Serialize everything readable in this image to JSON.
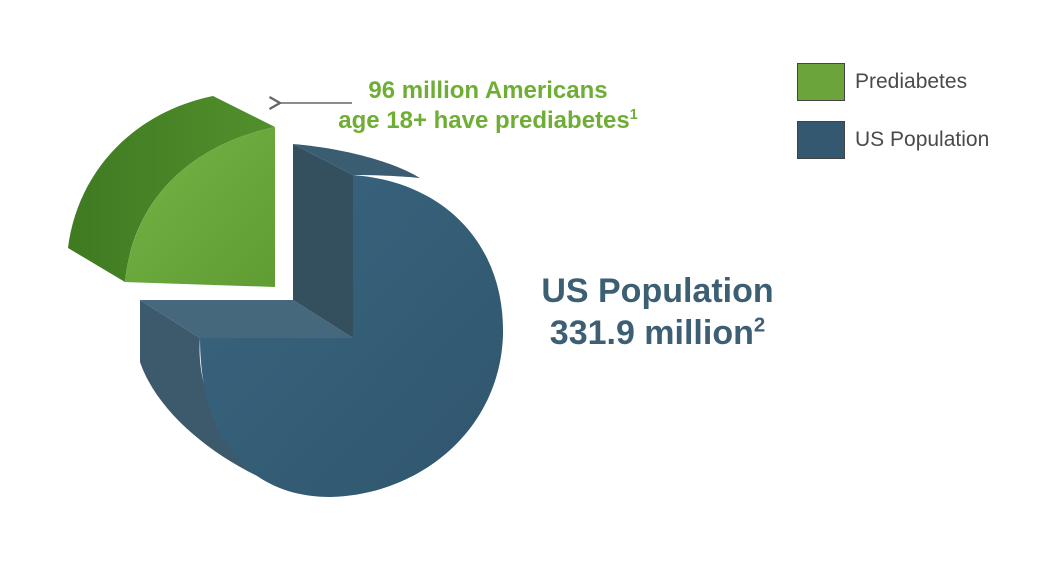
{
  "chart_data": {
    "type": "pie",
    "slices": [
      {
        "name": "Prediabetes",
        "value": 96,
        "color": "#6aa43b"
      },
      {
        "name": "US Population",
        "value": 331.9,
        "color": "#33586f"
      }
    ],
    "legend": [
      {
        "label": "Prediabetes",
        "color": "#6aa43b"
      },
      {
        "label": "US Population",
        "color": "#33586f"
      }
    ],
    "legend_position": "top-right",
    "annotations": {
      "prediabetes_line1": "96 million Americans",
      "prediabetes_line2": "age 18+ have prediabetes",
      "prediabetes_footnote": "1",
      "population_line1": "US Population",
      "population_line2": "331.9 million",
      "population_footnote": "2"
    }
  }
}
